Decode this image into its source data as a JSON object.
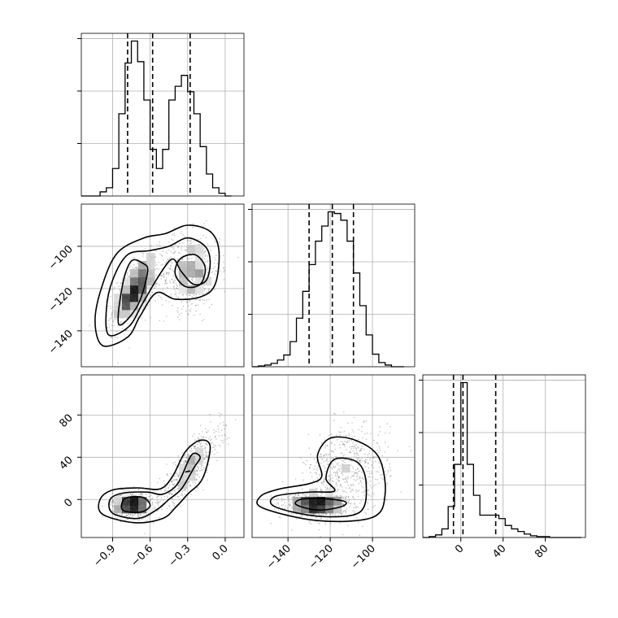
{
  "chart_data": {
    "type": "corner",
    "grid": true,
    "parameters": [
      {
        "axis_range": [
          -1.15,
          0.15
        ],
        "ticks": [
          -0.9,
          -0.6,
          -0.3,
          0.0
        ],
        "tick_labels": [
          "−0.9",
          "−0.6",
          "−0.3",
          "0.0"
        ],
        "quantiles": [
          -0.78,
          -0.58,
          -0.28
        ],
        "hist_edges": [
          -1.15,
          -1.1,
          -1.05,
          -1.0,
          -0.95,
          -0.9,
          -0.85,
          -0.8,
          -0.75,
          -0.7,
          -0.65,
          -0.6,
          -0.55,
          -0.5,
          -0.45,
          -0.4,
          -0.35,
          -0.3,
          -0.25,
          -0.2,
          -0.15,
          -0.1,
          -0.05,
          0.0,
          0.05
        ],
        "hist_counts": [
          0,
          0,
          0,
          3,
          6,
          20,
          60,
          97,
          113,
          98,
          70,
          34,
          20,
          34,
          70,
          80,
          88,
          76,
          60,
          36,
          16,
          6,
          2,
          0
        ]
      },
      {
        "axis_range": [
          -157,
          -80
        ],
        "ticks": [
          -140,
          -120,
          -100
        ],
        "tick_labels": [
          "−140",
          "−120",
          "−100"
        ],
        "quantiles": [
          -130,
          -119,
          -109
        ],
        "hist_edges": [
          -157,
          -154,
          -151,
          -148,
          -145,
          -142,
          -139,
          -136,
          -133,
          -130,
          -127,
          -124,
          -121,
          -118,
          -115,
          -112,
          -109,
          -106,
          -103,
          -100,
          -97,
          -94,
          -91,
          -88,
          -85
        ],
        "hist_counts": [
          0,
          1,
          2,
          4,
          8,
          14,
          30,
          58,
          90,
          122,
          150,
          168,
          185,
          183,
          175,
          150,
          112,
          73,
          38,
          15,
          5,
          2,
          0,
          0
        ]
      },
      {
        "axis_range": [
          -36,
          118
        ],
        "ticks": [
          0,
          40,
          80
        ],
        "tick_labels": [
          "0",
          "40",
          "80"
        ],
        "quantiles": [
          -7,
          2,
          33
        ],
        "hist_edges": [
          -36,
          -30,
          -24,
          -18,
          -12,
          -6,
          0,
          6,
          12,
          18,
          24,
          30,
          36,
          42,
          48,
          54,
          60,
          66,
          72,
          78,
          84,
          90,
          96,
          102,
          108,
          114
        ],
        "hist_counts": [
          0,
          1,
          3,
          10,
          36,
          85,
          180,
          85,
          49,
          26,
          26,
          26,
          22,
          14,
          10,
          7,
          4,
          2,
          1,
          1,
          0,
          0,
          0,
          0,
          0
        ]
      }
    ],
    "pairs": [
      {
        "x_param": 0,
        "y_param": 1,
        "y_ticks": [
          -140,
          -120,
          -100
        ],
        "y_tick_labels": [
          "−140",
          "−120",
          "−100"
        ],
        "blobs": [
          {
            "mean": [
              -0.72,
              -121
            ],
            "std": [
              0.09,
              8
            ],
            "rho": 0.6,
            "weight": 0.55
          },
          {
            "mean": [
              -0.28,
              -112
            ],
            "std": [
              0.12,
              9
            ],
            "rho": 0.1,
            "weight": 0.45
          }
        ],
        "contours": [
          [
            [
              -0.85,
              -137
            ],
            [
              -0.7,
              -128
            ],
            [
              -0.62,
              -112
            ],
            [
              -0.66,
              -108
            ],
            [
              -0.75,
              -107
            ],
            [
              -0.82,
              -118
            ]
          ],
          [
            [
              -0.93,
              -142
            ],
            [
              -0.77,
              -138
            ],
            [
              -0.66,
              -127
            ],
            [
              -0.52,
              -113
            ],
            [
              -0.42,
              -106
            ],
            [
              -0.35,
              -112
            ],
            [
              -0.25,
              -118
            ],
            [
              -0.15,
              -116
            ],
            [
              -0.12,
              -107
            ],
            [
              -0.16,
              -100
            ],
            [
              -0.3,
              -96
            ],
            [
              -0.45,
              -100
            ],
            [
              -0.6,
              -102
            ],
            [
              -0.78,
              -104
            ],
            [
              -0.9,
              -116
            ],
            [
              -0.95,
              -130
            ]
          ],
          [
            [
              -0.98,
              -147
            ],
            [
              -0.78,
              -143
            ],
            [
              -0.68,
              -133
            ],
            [
              -0.55,
              -122
            ],
            [
              -0.4,
              -125
            ],
            [
              -0.2,
              -124
            ],
            [
              -0.08,
              -118
            ],
            [
              -0.05,
              -102
            ],
            [
              -0.12,
              -93
            ],
            [
              -0.3,
              -90
            ],
            [
              -0.48,
              -94
            ],
            [
              -0.65,
              -96
            ],
            [
              -0.86,
              -103
            ],
            [
              -0.98,
              -118
            ],
            [
              -1.04,
              -135
            ]
          ],
          [
            [
              -0.4,
              -113
            ],
            [
              -0.32,
              -119
            ],
            [
              -0.2,
              -118
            ],
            [
              -0.16,
              -110
            ],
            [
              -0.24,
              -104
            ],
            [
              -0.36,
              -106
            ]
          ]
        ]
      },
      {
        "x_param": 0,
        "y_param": 2,
        "y_ticks": [
          0,
          40,
          80
        ],
        "y_tick_labels": [
          "0",
          "40",
          "80"
        ],
        "blobs": [
          {
            "mean": [
              -0.74,
              -5
            ],
            "std": [
              0.08,
              6
            ],
            "rho": 0.0,
            "weight": 0.55
          },
          {
            "mean": [
              -0.28,
              30
            ],
            "std": [
              0.12,
              18
            ],
            "rho": 0.8,
            "weight": 0.45
          }
        ],
        "contours": [
          [
            [
              -0.82,
              -10
            ],
            [
              -0.68,
              -12
            ],
            [
              -0.6,
              -6
            ],
            [
              -0.66,
              2
            ],
            [
              -0.8,
              1
            ]
          ],
          [
            [
              -0.9,
              -13
            ],
            [
              -0.7,
              -18
            ],
            [
              -0.55,
              -10
            ],
            [
              -0.45,
              0
            ],
            [
              -0.35,
              10
            ],
            [
              -0.25,
              30
            ],
            [
              -0.2,
              40
            ],
            [
              -0.27,
              42
            ],
            [
              -0.38,
              15
            ],
            [
              -0.5,
              5
            ],
            [
              -0.62,
              7
            ],
            [
              -0.82,
              6
            ],
            [
              -0.92,
              0
            ]
          ],
          [
            [
              -0.98,
              -14
            ],
            [
              -0.72,
              -22
            ],
            [
              -0.5,
              -18
            ],
            [
              -0.4,
              -8
            ],
            [
              -0.3,
              5
            ],
            [
              -0.18,
              20
            ],
            [
              -0.12,
              50
            ],
            [
              -0.2,
              56
            ],
            [
              -0.32,
              45
            ],
            [
              -0.42,
              22
            ],
            [
              -0.52,
              10
            ],
            [
              -0.7,
              11
            ],
            [
              -0.9,
              9
            ],
            [
              -1.0,
              0
            ]
          ],
          [
            [
              -0.32,
              26
            ],
            [
              -0.28,
              27
            ]
          ]
        ]
      },
      {
        "x_param": 1,
        "y_param": 2,
        "y_ticks": [],
        "y_tick_labels": [],
        "blobs": [
          {
            "mean": [
              -127,
              -5
            ],
            "std": [
              7,
              5
            ],
            "rho": 0.0,
            "weight": 0.55
          },
          {
            "mean": [
              -112,
              25
            ],
            "std": [
              10,
              22
            ],
            "rho": 0.2,
            "weight": 0.45
          }
        ],
        "contours": [
          [
            [
              -136,
              -5
            ],
            [
              -126,
              -10
            ],
            [
              -115,
              -7
            ],
            [
              -113,
              -2
            ],
            [
              -124,
              1
            ],
            [
              -134,
              0
            ]
          ],
          [
            [
              -146,
              -7
            ],
            [
              -125,
              -16
            ],
            [
              -106,
              -12
            ],
            [
              -103,
              15
            ],
            [
              -107,
              35
            ],
            [
              -118,
              38
            ],
            [
              -122,
              20
            ],
            [
              -118,
              8
            ],
            [
              -130,
              7
            ],
            [
              -146,
              3
            ]
          ],
          [
            [
              -152,
              -8
            ],
            [
              -126,
              -20
            ],
            [
              -100,
              -17
            ],
            [
              -94,
              5
            ],
            [
              -97,
              40
            ],
            [
              -108,
              56
            ],
            [
              -120,
              58
            ],
            [
              -126,
              42
            ],
            [
              -124,
              22
            ],
            [
              -130,
              15
            ],
            [
              -144,
              10
            ],
            [
              -153,
              3
            ]
          ]
        ]
      }
    ]
  }
}
